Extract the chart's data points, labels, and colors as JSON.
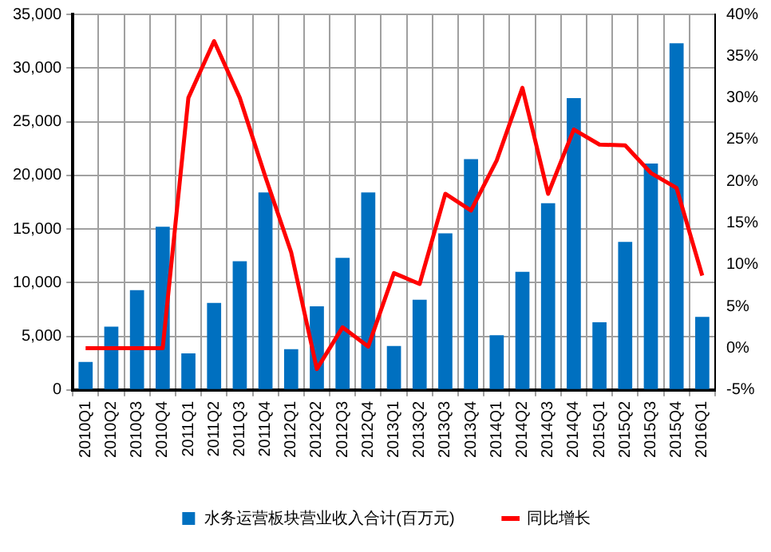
{
  "chart_data": {
    "type": "bar",
    "categories": [
      "2010Q1",
      "2010Q2",
      "2010Q3",
      "2010Q4",
      "2011Q1",
      "2011Q2",
      "2011Q3",
      "2011Q4",
      "2012Q1",
      "2012Q2",
      "2012Q3",
      "2012Q4",
      "2013Q1",
      "2013Q2",
      "2013Q3",
      "2013Q4",
      "2014Q1",
      "2014Q2",
      "2014Q3",
      "2014Q4",
      "2015Q1",
      "2015Q2",
      "2015Q3",
      "2015Q4",
      "2016Q1"
    ],
    "series": [
      {
        "name": "水务运营板块营业收入合计(百万元)",
        "color": "#0070c0",
        "values": [
          2600,
          5900,
          9300,
          15200,
          3400,
          8100,
          12000,
          18400,
          3800,
          7800,
          12300,
          18400,
          4100,
          8400,
          14600,
          21500,
          5100,
          11000,
          17400,
          27200,
          6300,
          13800,
          21100,
          32300,
          6800
        ]
      },
      {
        "name": "同比增长",
        "type": "line",
        "axis": "y2",
        "color": "#ff0000",
        "values": [
          0,
          0,
          0,
          0,
          30,
          36.8,
          30,
          20.5,
          11.5,
          -2.5,
          2.5,
          0.2,
          9,
          7.7,
          18.5,
          16.5,
          22.5,
          31.2,
          18.5,
          26.2,
          24.4,
          24.3,
          21,
          19.2,
          8.7
        ]
      }
    ],
    "ylim": [
      0,
      35000
    ],
    "yticks": [
      0,
      {
        "value": 5000,
        "label": "5,000"
      },
      {
        "value": 10000,
        "label": "10,000"
      },
      {
        "value": 15000,
        "label": "15,000"
      },
      {
        "value": 20000,
        "label": "20,000"
      },
      {
        "value": 25000,
        "label": "25,000"
      },
      {
        "value": 30000,
        "label": "30,000"
      },
      {
        "value": 35000,
        "label": "35,000"
      }
    ],
    "y2lim": [
      -5,
      40
    ],
    "y2ticks": [
      {
        "value": -5,
        "label": "-5%"
      },
      {
        "value": 0,
        "label": "0%"
      },
      {
        "value": 5,
        "label": "5%"
      },
      {
        "value": 10,
        "label": "10%"
      },
      {
        "value": 15,
        "label": "15%"
      },
      {
        "value": 20,
        "label": "20%"
      },
      {
        "value": 25,
        "label": "25%"
      },
      {
        "value": 30,
        "label": "30%"
      },
      {
        "value": 35,
        "label": "35%"
      },
      {
        "value": 40,
        "label": "40%"
      }
    ],
    "grid": true,
    "legend": "bottom",
    "marker": "none",
    "line_style": "solid"
  }
}
